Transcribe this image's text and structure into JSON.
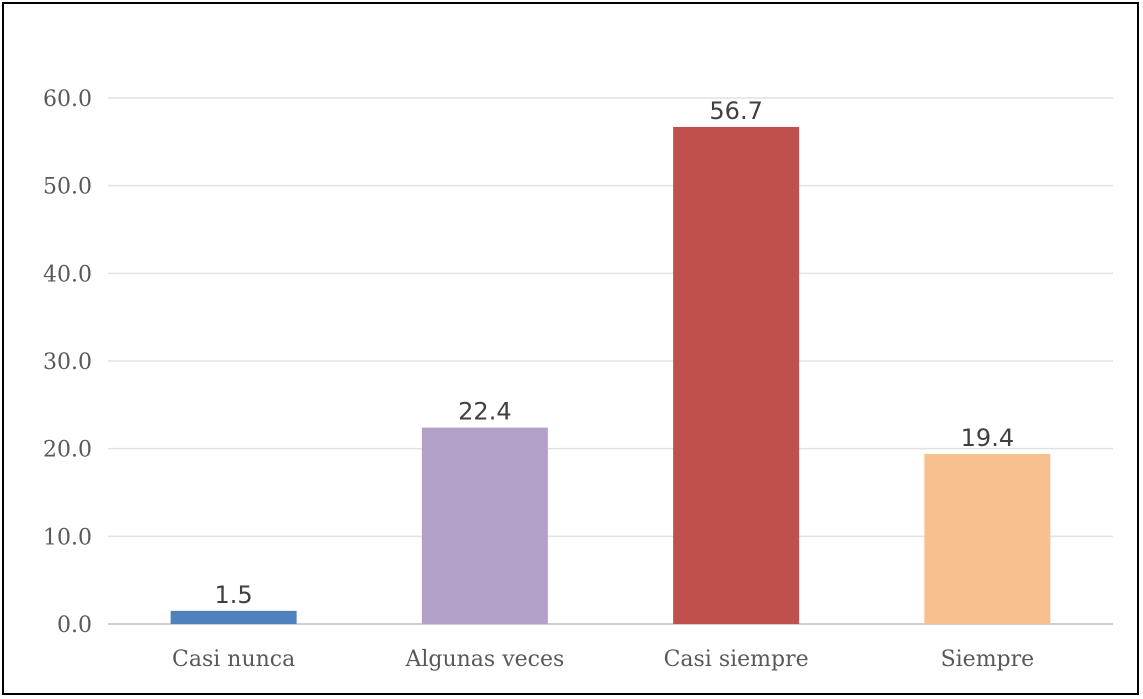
{
  "chart_data": {
    "type": "bar",
    "categories": [
      "Casi nunca",
      "Algunas veces",
      "Casi siempre",
      "Siempre"
    ],
    "values": [
      1.5,
      22.4,
      56.7,
      19.4
    ],
    "value_labels": [
      "1.5",
      "22.4",
      "56.7",
      "19.4"
    ],
    "bar_colors": [
      "#4f81bd",
      "#b3a0c8",
      "#c0504d",
      "#f8bf8f"
    ],
    "yticks": [
      "0.0",
      "10.0",
      "20.0",
      "30.0",
      "40.0",
      "50.0",
      "60.0"
    ],
    "ylim": [
      0,
      60
    ],
    "grid": true,
    "title": "",
    "xlabel": "",
    "ylabel": ""
  }
}
